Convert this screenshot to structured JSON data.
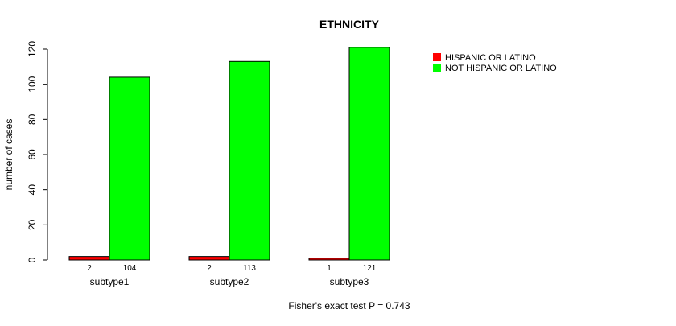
{
  "chart_data": {
    "type": "bar",
    "title": "ETHNICITY",
    "xlabel": "Fisher's exact test P = 0.743",
    "ylabel": "number of cases",
    "ylim": [
      0,
      120
    ],
    "yticks": [
      "0",
      "20",
      "40",
      "60",
      "80",
      "100",
      "120"
    ],
    "categories": [
      "subtype1",
      "subtype2",
      "subtype3"
    ],
    "series": [
      {
        "name": "HISPANIC OR LATINO",
        "color": "#ff0000",
        "values": [
          2,
          2,
          1
        ],
        "labels": [
          "2",
          "2",
          "1"
        ]
      },
      {
        "name": "NOT HISPANIC OR LATINO",
        "color": "#00ff00",
        "values": [
          104,
          113,
          121
        ],
        "labels": [
          "104",
          "113",
          "121"
        ]
      }
    ],
    "legend_position": "top-right",
    "grid": false
  }
}
